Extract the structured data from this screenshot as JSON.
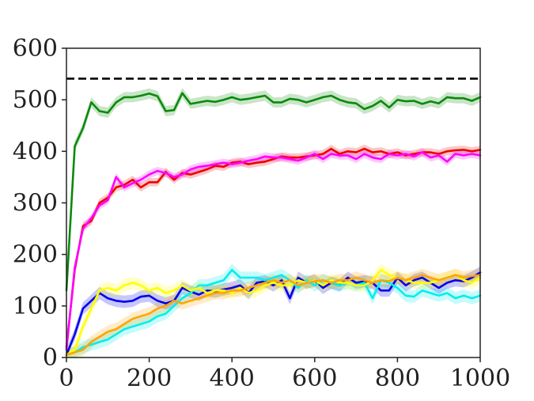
{
  "chart_data": {
    "type": "line",
    "title": "",
    "xlabel": "",
    "ylabel": "",
    "xlim": [
      0,
      1000
    ],
    "ylim": [
      0,
      600
    ],
    "xticks": [
      0,
      200,
      400,
      600,
      800,
      1000
    ],
    "yticks": [
      0,
      100,
      200,
      300,
      400,
      500,
      600
    ],
    "grid": false,
    "reference_line": {
      "y": 541,
      "style": "dashed",
      "color": "#000000"
    },
    "x": [
      0,
      20,
      40,
      60,
      80,
      100,
      120,
      140,
      160,
      180,
      200,
      220,
      240,
      260,
      280,
      300,
      320,
      340,
      360,
      380,
      400,
      420,
      440,
      460,
      480,
      500,
      520,
      540,
      560,
      580,
      600,
      620,
      640,
      660,
      680,
      700,
      720,
      740,
      760,
      780,
      800,
      820,
      840,
      860,
      880,
      900,
      920,
      940,
      960,
      980,
      1000
    ],
    "series": [
      {
        "color": "#0a8a0a",
        "band": 10,
        "values": [
          130,
          410,
          445,
          495,
          478,
          475,
          495,
          505,
          505,
          508,
          512,
          507,
          478,
          480,
          513,
          492,
          495,
          498,
          496,
          500,
          505,
          500,
          502,
          505,
          508,
          495,
          495,
          502,
          500,
          495,
          500,
          505,
          508,
          500,
          495,
          493,
          482,
          488,
          498,
          485,
          500,
          497,
          498,
          492,
          497,
          493,
          505,
          503,
          503,
          498,
          505
        ]
      },
      {
        "color": "#ee0000",
        "band": 8,
        "values": [
          20,
          170,
          255,
          265,
          300,
          310,
          330,
          335,
          345,
          330,
          340,
          340,
          360,
          345,
          358,
          355,
          360,
          365,
          372,
          370,
          378,
          380,
          375,
          378,
          380,
          385,
          390,
          388,
          388,
          390,
          392,
          395,
          405,
          395,
          400,
          398,
          405,
          398,
          400,
          395,
          398,
          392,
          395,
          398,
          398,
          395,
          400,
          402,
          403,
          400,
          403
        ]
      },
      {
        "color": "#ff00ff",
        "band": 8,
        "values": [
          15,
          175,
          250,
          270,
          295,
          305,
          350,
          330,
          338,
          345,
          355,
          362,
          358,
          350,
          355,
          365,
          370,
          372,
          375,
          378,
          375,
          378,
          382,
          385,
          390,
          388,
          388,
          385,
          382,
          388,
          395,
          385,
          395,
          392,
          392,
          385,
          395,
          388,
          385,
          395,
          392,
          395,
          390,
          398,
          388,
          392,
          380,
          395,
          392,
          395,
          392
        ]
      },
      {
        "color": "#0000ee",
        "band": 12,
        "values": [
          5,
          45,
          95,
          110,
          125,
          115,
          110,
          108,
          110,
          118,
          120,
          110,
          105,
          110,
          135,
          128,
          122,
          130,
          128,
          132,
          135,
          140,
          125,
          145,
          148,
          140,
          150,
          115,
          155,
          145,
          150,
          135,
          145,
          140,
          155,
          145,
          148,
          145,
          130,
          130,
          155,
          140,
          150,
          155,
          145,
          135,
          145,
          150,
          148,
          155,
          165
        ]
      },
      {
        "color": "#00eeee",
        "band": 12,
        "values": [
          5,
          10,
          20,
          25,
          30,
          35,
          45,
          55,
          60,
          65,
          70,
          80,
          85,
          100,
          115,
          125,
          140,
          140,
          145,
          150,
          170,
          155,
          155,
          155,
          150,
          155,
          160,
          150,
          135,
          150,
          140,
          150,
          145,
          140,
          145,
          140,
          145,
          115,
          150,
          145,
          135,
          120,
          118,
          130,
          125,
          120,
          125,
          115,
          120,
          115,
          120
        ]
      },
      {
        "color": "#ffff00",
        "band": 12,
        "values": [
          5,
          15,
          60,
          95,
          130,
          135,
          130,
          140,
          145,
          140,
          130,
          135,
          125,
          130,
          140,
          130,
          135,
          125,
          130,
          130,
          125,
          135,
          125,
          130,
          140,
          145,
          140,
          140,
          150,
          145,
          150,
          140,
          150,
          145,
          145,
          140,
          140,
          150,
          170,
          160,
          155,
          150,
          145,
          145,
          145,
          150,
          155,
          160,
          150,
          145,
          155
        ]
      },
      {
        "color": "#ffa500",
        "band": 12,
        "values": [
          5,
          10,
          15,
          30,
          40,
          50,
          55,
          65,
          75,
          80,
          85,
          95,
          100,
          110,
          105,
          110,
          115,
          120,
          125,
          125,
          130,
          130,
          135,
          140,
          145,
          150,
          145,
          150,
          140,
          145,
          148,
          150,
          145,
          150,
          150,
          155,
          150,
          145,
          150,
          148,
          155,
          150,
          155,
          160,
          155,
          150,
          155,
          160,
          155,
          158,
          160
        ]
      }
    ]
  }
}
